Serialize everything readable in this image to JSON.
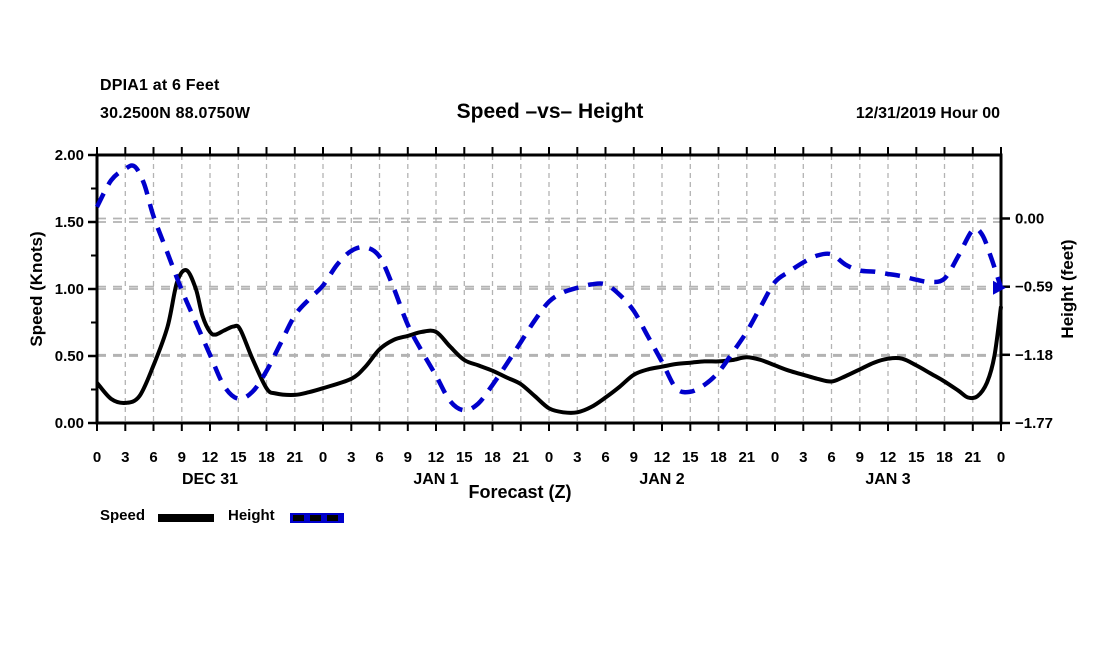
{
  "header": {
    "station_line1": "DPIA1 at 6 Feet",
    "station_line2": "30.2500N 88.0750W",
    "title": "Speed –vs– Height",
    "datetime": "12/31/2019 Hour 00"
  },
  "axes": {
    "left_title": "Speed (Knots)",
    "right_title": "Height (feet)",
    "x_title": "Forecast (Z)"
  },
  "legend": {
    "speed_label": "Speed",
    "height_label": "Height"
  },
  "colors": {
    "speed_line": "#000000",
    "height_line": "#0000CC",
    "grid": "#b3b3b3",
    "frame": "#000000"
  },
  "chart_data": {
    "type": "line",
    "title": "Speed –vs– Height",
    "xlabel": "Forecast (Z)",
    "x_range_hours": [
      0,
      96
    ],
    "x_major_step_hours": 3,
    "x_tick_labels": [
      "0",
      "3",
      "6",
      "9",
      "12",
      "15",
      "18",
      "21",
      "0",
      "3",
      "6",
      "9",
      "12",
      "15",
      "18",
      "21",
      "0",
      "3",
      "6",
      "9",
      "12",
      "15",
      "18",
      "21",
      "0",
      "3",
      "6",
      "9",
      "12",
      "15",
      "18",
      "21",
      "0"
    ],
    "day_labels": [
      {
        "label": "DEC 31",
        "hour": 12
      },
      {
        "label": "JAN 1",
        "hour": 36
      },
      {
        "label": "JAN 2",
        "hour": 60
      },
      {
        "label": "JAN 3",
        "hour": 84
      }
    ],
    "y_left": {
      "label": "Speed (Knots)",
      "range": [
        0.0,
        2.0
      ],
      "ticks": [
        {
          "value": 0.0,
          "label": "0.00"
        },
        {
          "value": 0.5,
          "label": "0.50"
        },
        {
          "value": 1.0,
          "label": "1.00"
        },
        {
          "value": 1.5,
          "label": "1.50"
        },
        {
          "value": 2.0,
          "label": "2.00"
        }
      ],
      "minor_tick_step": 0.25,
      "gridline_values": [
        0.5,
        1.0,
        1.5
      ]
    },
    "y_right": {
      "label": "Height (feet)",
      "range": [
        -1.77,
        0.55
      ],
      "ticks": [
        {
          "value": 0.0,
          "label": "0.00"
        },
        {
          "value": -0.59,
          "label": "−0.59"
        },
        {
          "value": -1.18,
          "label": "−1.18"
        },
        {
          "value": -1.77,
          "label": "−1.77"
        }
      ],
      "gridline_values": [
        0.0,
        -0.59,
        -1.18
      ],
      "end_arrow_value": -0.6
    },
    "grid": "dashed-gray",
    "legend_position": "bottom-left",
    "series": [
      {
        "name": "Speed",
        "axis": "left",
        "units": "knots",
        "color": "#000000",
        "style": "solid",
        "points": [
          [
            0,
            0.3
          ],
          [
            1.5,
            0.18
          ],
          [
            3,
            0.15
          ],
          [
            4.5,
            0.2
          ],
          [
            6,
            0.43
          ],
          [
            7.5,
            0.72
          ],
          [
            8.5,
            1.05
          ],
          [
            9.5,
            1.14
          ],
          [
            10.5,
            1.0
          ],
          [
            11.2,
            0.8
          ],
          [
            12,
            0.68
          ],
          [
            12.6,
            0.66
          ],
          [
            13.5,
            0.69
          ],
          [
            14.5,
            0.72
          ],
          [
            15.2,
            0.7
          ],
          [
            16.5,
            0.48
          ],
          [
            18,
            0.26
          ],
          [
            19,
            0.22
          ],
          [
            21,
            0.21
          ],
          [
            22.5,
            0.23
          ],
          [
            24,
            0.26
          ],
          [
            27,
            0.33
          ],
          [
            28.5,
            0.42
          ],
          [
            30,
            0.55
          ],
          [
            31.5,
            0.62
          ],
          [
            33,
            0.65
          ],
          [
            34.5,
            0.68
          ],
          [
            36,
            0.68
          ],
          [
            37.5,
            0.57
          ],
          [
            39,
            0.47
          ],
          [
            40.5,
            0.43
          ],
          [
            42,
            0.39
          ],
          [
            43.5,
            0.34
          ],
          [
            45,
            0.29
          ],
          [
            46.5,
            0.2
          ],
          [
            48,
            0.11
          ],
          [
            49.5,
            0.08
          ],
          [
            51,
            0.08
          ],
          [
            52.5,
            0.12
          ],
          [
            54,
            0.19
          ],
          [
            55.5,
            0.27
          ],
          [
            57,
            0.36
          ],
          [
            58.5,
            0.4
          ],
          [
            60,
            0.42
          ],
          [
            61.5,
            0.44
          ],
          [
            63,
            0.45
          ],
          [
            64.5,
            0.46
          ],
          [
            66,
            0.46
          ],
          [
            67.5,
            0.47
          ],
          [
            69,
            0.49
          ],
          [
            70.5,
            0.47
          ],
          [
            72,
            0.43
          ],
          [
            73.5,
            0.39
          ],
          [
            75,
            0.36
          ],
          [
            76.5,
            0.33
          ],
          [
            78,
            0.31
          ],
          [
            79.5,
            0.35
          ],
          [
            81,
            0.4
          ],
          [
            82.5,
            0.45
          ],
          [
            84,
            0.48
          ],
          [
            85.5,
            0.48
          ],
          [
            87,
            0.43
          ],
          [
            88.5,
            0.37
          ],
          [
            90,
            0.31
          ],
          [
            91.5,
            0.24
          ],
          [
            92.5,
            0.19
          ],
          [
            93.5,
            0.2
          ],
          [
            94.5,
            0.3
          ],
          [
            95.3,
            0.5
          ],
          [
            96,
            0.87
          ]
        ]
      },
      {
        "name": "Height",
        "axis": "right",
        "units": "feet",
        "color": "#0000CC",
        "style": "dashed",
        "points": [
          [
            0,
            0.1
          ],
          [
            1.5,
            0.33
          ],
          [
            3,
            0.43
          ],
          [
            4,
            0.45
          ],
          [
            5,
            0.3
          ],
          [
            6,
            0.02
          ],
          [
            7.5,
            -0.3
          ],
          [
            9,
            -0.62
          ],
          [
            10.5,
            -0.9
          ],
          [
            12,
            -1.18
          ],
          [
            13.5,
            -1.45
          ],
          [
            15,
            -1.56
          ],
          [
            16.5,
            -1.5
          ],
          [
            18,
            -1.32
          ],
          [
            19.5,
            -1.08
          ],
          [
            21,
            -0.84
          ],
          [
            22.5,
            -0.7
          ],
          [
            24,
            -0.58
          ],
          [
            25.5,
            -0.4
          ],
          [
            27,
            -0.28
          ],
          [
            28.5,
            -0.25
          ],
          [
            30,
            -0.33
          ],
          [
            31.5,
            -0.6
          ],
          [
            33,
            -0.92
          ],
          [
            34.5,
            -1.15
          ],
          [
            36,
            -1.36
          ],
          [
            37.5,
            -1.58
          ],
          [
            39,
            -1.66
          ],
          [
            40.5,
            -1.6
          ],
          [
            42,
            -1.44
          ],
          [
            43.5,
            -1.26
          ],
          [
            45,
            -1.07
          ],
          [
            46.5,
            -0.88
          ],
          [
            48,
            -0.72
          ],
          [
            49.5,
            -0.64
          ],
          [
            51,
            -0.6
          ],
          [
            52.5,
            -0.57
          ],
          [
            54,
            -0.57
          ],
          [
            55.5,
            -0.66
          ],
          [
            57,
            -0.8
          ],
          [
            58.5,
            -1.02
          ],
          [
            60,
            -1.24
          ],
          [
            61.5,
            -1.47
          ],
          [
            63,
            -1.5
          ],
          [
            64.5,
            -1.44
          ],
          [
            66,
            -1.33
          ],
          [
            67.5,
            -1.16
          ],
          [
            69,
            -0.98
          ],
          [
            70.5,
            -0.76
          ],
          [
            72,
            -0.55
          ],
          [
            73.5,
            -0.46
          ],
          [
            75,
            -0.38
          ],
          [
            76.5,
            -0.32
          ],
          [
            78,
            -0.31
          ],
          [
            79.5,
            -0.4
          ],
          [
            81,
            -0.45
          ],
          [
            82.5,
            -0.46
          ],
          [
            84,
            -0.48
          ],
          [
            85.5,
            -0.5
          ],
          [
            87,
            -0.53
          ],
          [
            88.5,
            -0.55
          ],
          [
            90,
            -0.52
          ],
          [
            91.5,
            -0.32
          ],
          [
            93,
            -0.1
          ],
          [
            94,
            -0.14
          ],
          [
            95,
            -0.35
          ],
          [
            96,
            -0.6
          ]
        ]
      }
    ]
  }
}
